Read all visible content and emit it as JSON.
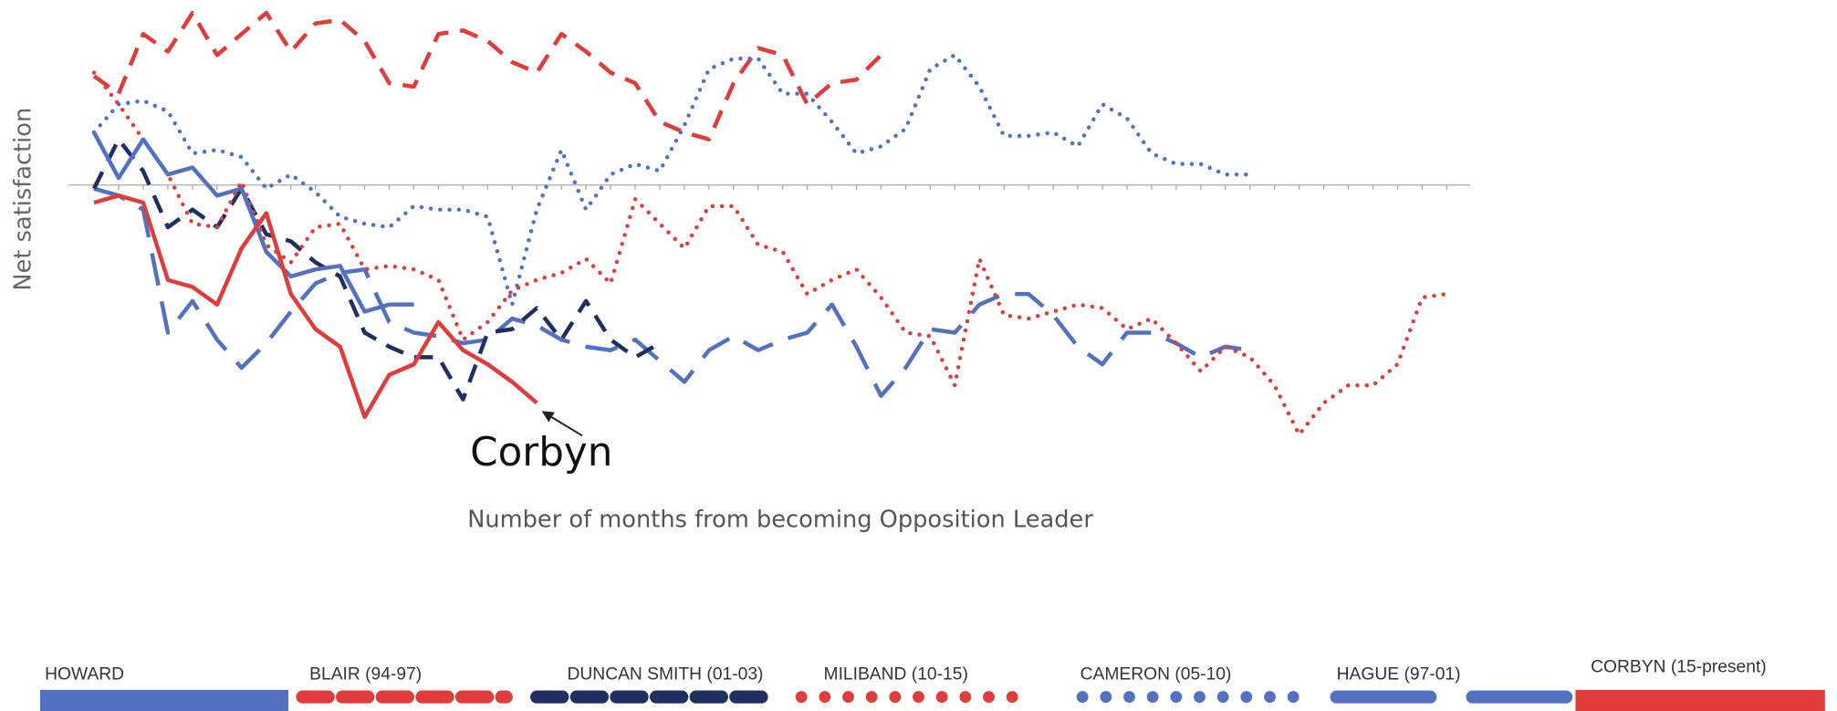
{
  "chart_data": {
    "type": "line",
    "xlabel": "Number of months from becoming Opposition Leader",
    "ylabel": "Net satisfaction",
    "annotation": "Corbyn",
    "xlim": [
      -1.05,
      55.95
    ],
    "ylim": [
      -74,
      51
    ],
    "x": [
      0,
      1,
      2,
      3,
      4,
      5,
      6,
      7,
      8,
      9,
      10,
      11,
      12,
      13,
      14,
      15,
      16,
      17,
      18,
      19,
      20,
      21,
      22,
      23,
      24,
      25,
      26,
      27,
      28,
      29,
      30,
      31,
      32,
      33,
      34,
      35,
      36,
      37,
      38,
      39,
      40,
      41,
      42,
      43,
      44,
      45,
      46,
      47,
      48,
      49,
      50,
      51,
      52,
      53,
      54,
      55
    ],
    "xticks": [
      0,
      1,
      2,
      3,
      4,
      5,
      6,
      7,
      8,
      9,
      10,
      11,
      12,
      13,
      14,
      15,
      16,
      17,
      18,
      19,
      20,
      21,
      22,
      23,
      24,
      25,
      26,
      27,
      28,
      29,
      30,
      31,
      32,
      33,
      34,
      35,
      36,
      37,
      38,
      39,
      40,
      41,
      42,
      43,
      44,
      45,
      46,
      47,
      48,
      49,
      50,
      51,
      52,
      53,
      54,
      55
    ],
    "series": [
      {
        "name": "HOWARD",
        "color": "#5470c0",
        "style": "solid",
        "values": [
          15,
          2,
          13,
          3,
          5,
          -3,
          -1,
          -19,
          -26,
          -24,
          -23,
          -36,
          -34,
          -34,
          null,
          null,
          null,
          null,
          null,
          null,
          null,
          null,
          null,
          null,
          null,
          null,
          null,
          null,
          null,
          null,
          null,
          null,
          null,
          null,
          null,
          null,
          null,
          null,
          null,
          null,
          null,
          null,
          null,
          null,
          null,
          null,
          null,
          null,
          null,
          null,
          null,
          null,
          null,
          null,
          null,
          null
        ]
      },
      {
        "name": "BLAIR (94-97)",
        "color": "#e03c3c",
        "style": "dashed",
        "values": [
          31,
          26,
          43,
          38,
          49,
          37,
          43,
          49,
          38,
          46,
          47,
          41,
          29,
          28,
          43,
          44,
          41,
          35,
          32,
          43,
          38,
          32,
          29,
          18,
          15,
          13,
          29,
          39,
          37,
          23,
          29,
          30,
          37,
          null,
          null,
          null,
          null,
          null,
          null,
          null,
          null,
          null,
          null,
          null,
          null,
          null,
          null,
          null,
          null,
          null,
          null,
          null,
          null,
          null,
          null,
          null
        ]
      },
      {
        "name": "DUNCAN SMITH (01-03)",
        "color": "#1f3060",
        "style": "dashed",
        "values": [
          -1,
          13,
          4,
          -12,
          -7,
          -12,
          -1,
          -14,
          -16,
          -22,
          -26,
          -42,
          -46,
          -49,
          -49,
          -61,
          -42,
          -41,
          -35,
          -44,
          -33,
          -44,
          -49,
          -45,
          null,
          null,
          null,
          null,
          null,
          null,
          null,
          null,
          null,
          null,
          null,
          null,
          null,
          null,
          null,
          null,
          null,
          null,
          null,
          null,
          null,
          null,
          null,
          null,
          null,
          null,
          null,
          null,
          null,
          null,
          null,
          null
        ]
      },
      {
        "name": "MILIBAND (10-15)",
        "color": "#e03c3c",
        "style": "dotted",
        "values": [
          32,
          23,
          13,
          3,
          -11,
          -12,
          1,
          -17,
          -22,
          -12,
          -11,
          -24,
          -23,
          -24,
          -27,
          -44,
          -39,
          -30,
          -27,
          -25,
          -21,
          -28,
          -4,
          -11,
          -18,
          -6,
          -6,
          -17,
          -19,
          -31,
          -27,
          -24,
          -32,
          -42,
          -43,
          -57,
          -21,
          -37,
          -38,
          -36,
          -34,
          -35,
          -41,
          -38,
          -45,
          -53,
          -46,
          -49,
          -57,
          -71,
          -62,
          -57,
          -57,
          -51,
          -32,
          -31
        ]
      },
      {
        "name": "CAMERON (05-10)",
        "color": "#5470c0",
        "style": "dotted",
        "values": [
          15,
          23,
          24,
          21,
          9,
          10,
          8,
          -1,
          3,
          -2,
          -9,
          -11,
          -12,
          -6,
          -7,
          -7,
          -9,
          -34,
          -7,
          10,
          -7,
          3,
          6,
          4,
          17,
          33,
          36,
          36,
          26,
          26,
          18,
          9,
          11,
          16,
          33,
          37,
          28,
          14,
          14,
          15,
          11,
          23,
          19,
          9,
          6,
          6,
          3,
          3,
          null,
          null,
          null,
          null,
          null,
          null,
          null,
          null
        ]
      },
      {
        "name": "HAGUE (97-01)",
        "color": "#5470c0",
        "style": "longdash",
        "values": [
          -1,
          -3,
          -7,
          -42,
          -33,
          -44,
          -52,
          -45,
          -36,
          -28,
          -25,
          -24,
          -39,
          -42,
          -43,
          -45,
          -44,
          -38,
          -40,
          -44,
          -46,
          -47,
          -44,
          -50,
          -56,
          -47,
          -43,
          -47,
          -44,
          -42,
          -34,
          -46,
          -60,
          -52,
          -41,
          -42,
          -34,
          -31,
          -31,
          -37,
          -46,
          -51,
          -42,
          -42,
          -45,
          -49,
          -46,
          -47,
          null,
          null,
          null,
          null,
          null,
          null,
          null,
          null
        ]
      },
      {
        "name": "CORBYN (15-present)",
        "color": "#e03c3c",
        "style": "solid",
        "values": [
          -5,
          -3,
          -5,
          -27,
          -29,
          -34,
          -18,
          -8,
          -31,
          -41,
          -46,
          -66,
          -54,
          -51,
          -39,
          -47,
          -51,
          -56,
          -62,
          null,
          null,
          null,
          null,
          null,
          null,
          null,
          null,
          null,
          null,
          null,
          null,
          null,
          null,
          null,
          null,
          null,
          null,
          null,
          null,
          null,
          null,
          null,
          null,
          null,
          null,
          null,
          null,
          null,
          null,
          null,
          null,
          null,
          null,
          null,
          null,
          null
        ]
      }
    ]
  }
}
